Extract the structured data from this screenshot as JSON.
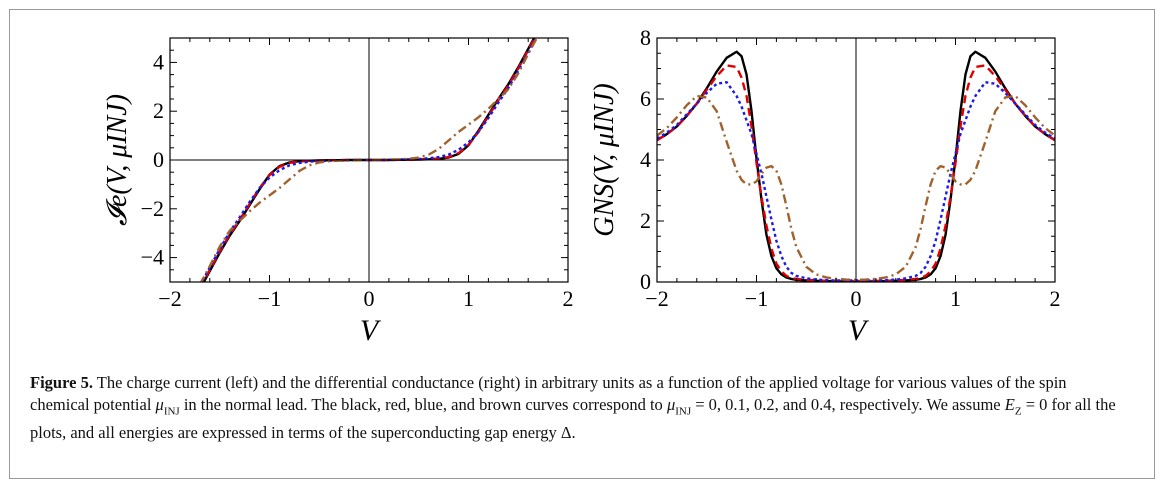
{
  "chart_data": [
    {
      "type": "line",
      "xlabel": "V",
      "ylabel": "𝓘e(V, μINJ)",
      "xlim": [
        -2,
        2
      ],
      "ylim": [
        -5,
        5
      ],
      "xticks": [
        "−2",
        "−1",
        "0",
        "1",
        "2"
      ],
      "yticks": [
        "−4",
        "−2",
        "0",
        "2",
        "4"
      ],
      "ytick_values": [
        -4,
        -2,
        0,
        2,
        4
      ],
      "x": [
        -1.7,
        -1.6,
        -1.5,
        -1.4,
        -1.3,
        -1.2,
        -1.1,
        -1.0,
        -0.9,
        -0.8,
        -0.7,
        -0.6,
        -0.5,
        -0.4,
        -0.3,
        -0.2,
        -0.1,
        0.0,
        0.1,
        0.2,
        0.3,
        0.4,
        0.5,
        0.6,
        0.7,
        0.8,
        0.9,
        1.0,
        1.1,
        1.2,
        1.3,
        1.4,
        1.5,
        1.6,
        1.7
      ],
      "series": [
        {
          "mu": "0",
          "color": "#000000",
          "dash": "",
          "values": [
            -5.3,
            -4.55,
            -3.8,
            -3.1,
            -2.5,
            -1.85,
            -1.2,
            -0.6,
            -0.25,
            -0.1,
            -0.05,
            -0.03,
            -0.02,
            -0.01,
            -0.01,
            0.0,
            0.0,
            0.0,
            0.0,
            0.0,
            0.01,
            0.01,
            0.02,
            0.03,
            0.05,
            0.1,
            0.25,
            0.6,
            1.2,
            1.85,
            2.5,
            3.1,
            3.8,
            4.55,
            5.3
          ]
        },
        {
          "mu": "0.1",
          "color": "#e00000",
          "dash": "8,5",
          "values": [
            -5.25,
            -4.5,
            -3.75,
            -3.05,
            -2.45,
            -1.8,
            -1.15,
            -0.62,
            -0.28,
            -0.12,
            -0.06,
            -0.04,
            -0.02,
            -0.01,
            -0.01,
            0.0,
            0.0,
            0.0,
            0.0,
            0.0,
            0.01,
            0.01,
            0.02,
            0.04,
            0.06,
            0.12,
            0.28,
            0.62,
            1.15,
            1.8,
            2.45,
            3.05,
            3.75,
            4.5,
            5.25
          ]
        },
        {
          "mu": "0.2",
          "color": "#1a1aee",
          "dash": "3,3",
          "values": [
            -5.15,
            -4.4,
            -3.65,
            -2.95,
            -2.35,
            -1.72,
            -1.15,
            -0.72,
            -0.42,
            -0.22,
            -0.12,
            -0.07,
            -0.04,
            -0.03,
            -0.02,
            -0.01,
            0.0,
            0.0,
            0.0,
            0.01,
            0.02,
            0.03,
            0.04,
            0.07,
            0.12,
            0.22,
            0.42,
            0.72,
            1.15,
            1.72,
            2.35,
            2.95,
            3.65,
            4.4,
            5.15
          ]
        },
        {
          "mu": "0.4",
          "color": "#a0622d",
          "dash": "9,4,2,4",
          "values": [
            -5.1,
            -4.35,
            -3.55,
            -2.9,
            -2.5,
            -2.1,
            -1.75,
            -1.45,
            -1.15,
            -0.8,
            -0.45,
            -0.22,
            -0.1,
            -0.05,
            -0.03,
            -0.02,
            -0.01,
            0.0,
            0.01,
            0.02,
            0.03,
            0.05,
            0.1,
            0.22,
            0.45,
            0.8,
            1.15,
            1.45,
            1.75,
            2.1,
            2.5,
            2.9,
            3.55,
            4.35,
            5.1
          ]
        }
      ]
    },
    {
      "type": "line",
      "xlabel": "V",
      "ylabel": "GNS(V, μINJ)",
      "xlim": [
        -2,
        2
      ],
      "ylim": [
        0,
        8
      ],
      "xticks": [
        "−2",
        "−1",
        "0",
        "1",
        "2"
      ],
      "yticks": [
        "0",
        "2",
        "4",
        "6",
        "8"
      ],
      "ytick_values": [
        0,
        2,
        4,
        6,
        8
      ],
      "x": [
        -2.0,
        -1.9,
        -1.8,
        -1.7,
        -1.6,
        -1.5,
        -1.4,
        -1.3,
        -1.2,
        -1.15,
        -1.1,
        -1.05,
        -1.0,
        -0.95,
        -0.9,
        -0.85,
        -0.8,
        -0.75,
        -0.7,
        -0.65,
        -0.6,
        -0.5,
        -0.4,
        -0.3,
        -0.2,
        -0.1,
        0.0,
        0.1,
        0.2,
        0.3,
        0.4,
        0.5,
        0.6,
        0.65,
        0.7,
        0.75,
        0.8,
        0.85,
        0.9,
        0.95,
        1.0,
        1.05,
        1.1,
        1.15,
        1.2,
        1.3,
        1.4,
        1.5,
        1.6,
        1.7,
        1.8,
        1.9,
        2.0
      ],
      "series": [
        {
          "mu": "0",
          "color": "#000000",
          "dash": "",
          "values": [
            4.65,
            4.85,
            5.1,
            5.45,
            5.85,
            6.35,
            6.9,
            7.35,
            7.55,
            7.4,
            6.8,
            5.6,
            4.05,
            2.7,
            1.55,
            0.85,
            0.45,
            0.25,
            0.15,
            0.1,
            0.07,
            0.05,
            0.04,
            0.03,
            0.02,
            0.02,
            0.02,
            0.02,
            0.02,
            0.03,
            0.04,
            0.05,
            0.07,
            0.1,
            0.15,
            0.25,
            0.45,
            0.85,
            1.55,
            2.7,
            4.05,
            5.6,
            6.8,
            7.4,
            7.55,
            7.35,
            6.9,
            6.35,
            5.85,
            5.45,
            5.1,
            4.85,
            4.65
          ]
        },
        {
          "mu": "0.1",
          "color": "#e00000",
          "dash": "8,5",
          "values": [
            4.65,
            4.85,
            5.1,
            5.45,
            5.85,
            6.3,
            6.75,
            7.1,
            7.05,
            6.7,
            6.1,
            5.1,
            3.9,
            2.8,
            1.85,
            1.1,
            0.6,
            0.35,
            0.2,
            0.13,
            0.1,
            0.07,
            0.05,
            0.04,
            0.04,
            0.03,
            0.03,
            0.03,
            0.04,
            0.04,
            0.05,
            0.07,
            0.1,
            0.13,
            0.2,
            0.35,
            0.6,
            1.1,
            1.85,
            2.8,
            3.9,
            5.1,
            6.1,
            6.7,
            7.05,
            7.1,
            6.75,
            6.3,
            5.85,
            5.45,
            5.1,
            4.85,
            4.65
          ]
        },
        {
          "mu": "0.2",
          "color": "#1a1aee",
          "dash": "3,3",
          "values": [
            4.7,
            4.9,
            5.15,
            5.5,
            5.85,
            6.2,
            6.5,
            6.55,
            6.1,
            5.75,
            5.3,
            4.85,
            4.2,
            3.55,
            2.8,
            2.05,
            1.35,
            0.85,
            0.5,
            0.3,
            0.2,
            0.12,
            0.08,
            0.06,
            0.05,
            0.05,
            0.05,
            0.05,
            0.05,
            0.06,
            0.08,
            0.12,
            0.2,
            0.3,
            0.5,
            0.85,
            1.35,
            2.05,
            2.8,
            3.55,
            4.2,
            4.85,
            5.3,
            5.75,
            6.1,
            6.55,
            6.5,
            6.2,
            5.85,
            5.5,
            5.15,
            4.9,
            4.7
          ]
        },
        {
          "mu": "0.4",
          "color": "#a0622d",
          "dash": "9,4,2,4",
          "values": [
            4.8,
            5.05,
            5.4,
            5.8,
            6.1,
            6.05,
            5.6,
            4.6,
            3.65,
            3.35,
            3.2,
            3.2,
            3.3,
            3.55,
            3.75,
            3.8,
            3.65,
            3.2,
            2.5,
            1.75,
            1.15,
            0.5,
            0.25,
            0.15,
            0.1,
            0.08,
            0.07,
            0.08,
            0.1,
            0.15,
            0.25,
            0.5,
            1.15,
            1.75,
            2.5,
            3.2,
            3.65,
            3.8,
            3.75,
            3.55,
            3.3,
            3.2,
            3.2,
            3.35,
            3.65,
            4.6,
            5.6,
            6.05,
            6.1,
            5.8,
            5.4,
            5.05,
            4.8
          ]
        }
      ]
    }
  ],
  "caption": {
    "label": "Figure 5.",
    "text1": " The charge current (left) and the differential conductance (right) in arbitrary units as a function of the applied voltage for various values of the spin chemical potential ",
    "mu_symbol": "μ",
    "mu_sub": "INJ",
    "text2": " in the normal lead. The black, red, blue, and brown curves correspond to ",
    "text3": " = 0, 0.1, 0.2, and 0.4, respectively. We assume ",
    "ez_symbol": "E",
    "ez_sub": "Z",
    "text4": " = 0 for all the plots, and all energies are expressed in terms of the superconducting gap energy Δ."
  }
}
